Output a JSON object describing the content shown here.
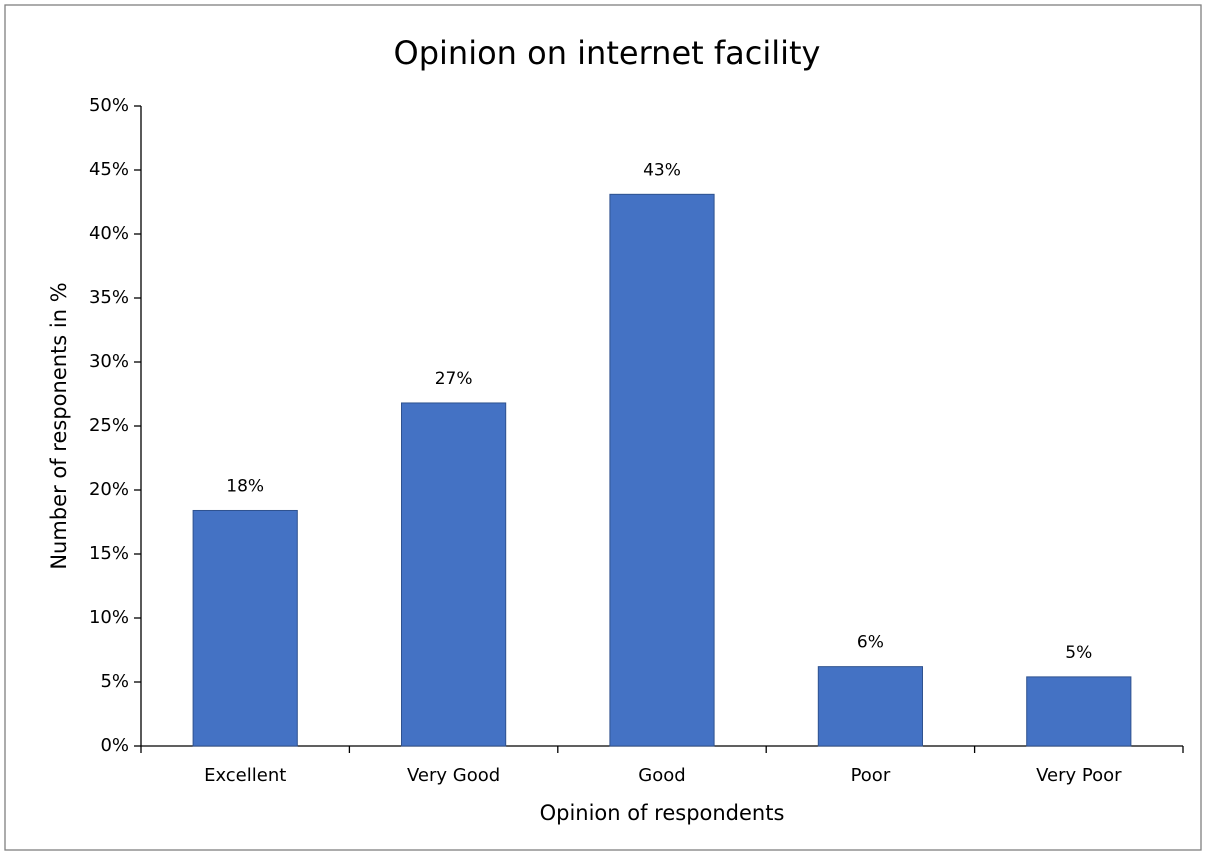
{
  "chart_data": {
    "type": "bar",
    "title": "Opinion on internet facility",
    "x_label": "Opinion of respondents",
    "y_label": "Number of responents in %",
    "categories": [
      "Excellent",
      "Very Good",
      "Good",
      "Poor",
      "Very Poor"
    ],
    "values": [
      18.4,
      26.8,
      43.1,
      6.2,
      5.4
    ],
    "value_labels": [
      "18%",
      "27%",
      "43%",
      "6%",
      "5%"
    ],
    "color": "#4472c4",
    "ylim": [
      0,
      50
    ],
    "yticks": [
      {
        "value": 0,
        "label": "0%"
      },
      {
        "value": 5,
        "label": "5%"
      },
      {
        "value": 10,
        "label": "10%"
      },
      {
        "value": 15,
        "label": "15%"
      },
      {
        "value": 20,
        "label": "20%"
      },
      {
        "value": 25,
        "label": "25%"
      },
      {
        "value": 30,
        "label": "30%"
      },
      {
        "value": 35,
        "label": "35%"
      },
      {
        "value": 40,
        "label": "40%"
      },
      {
        "value": 45,
        "label": "45%"
      },
      {
        "value": 50,
        "label": "50%"
      }
    ],
    "grid": false
  }
}
